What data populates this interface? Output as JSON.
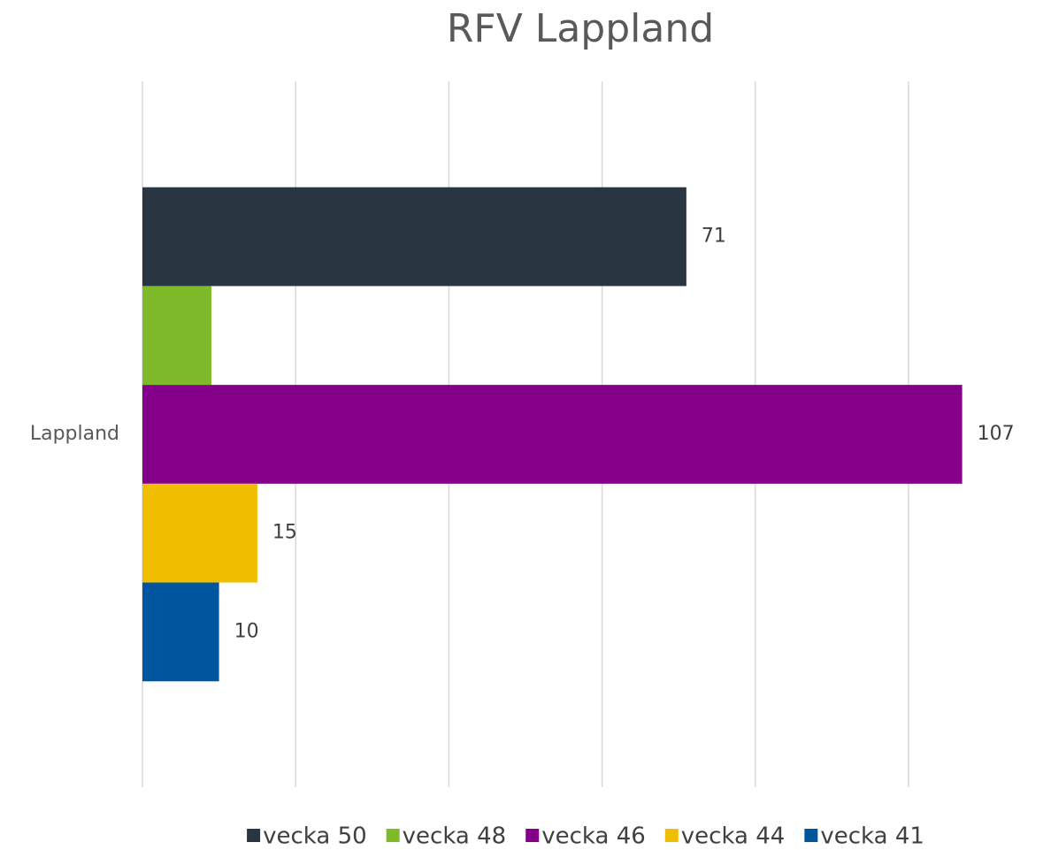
{
  "chart_data": {
    "type": "hbar",
    "title": "RFV Lappland",
    "categories": [
      "Lappland"
    ],
    "series": [
      {
        "name": "vecka 50",
        "color": "#2a3542",
        "values": [
          71
        ]
      },
      {
        "name": "vecka 48",
        "color": "#7fba2a",
        "values": [
          9
        ],
        "data_labels": false
      },
      {
        "name": "vecka 46",
        "color": "#84008a",
        "values": [
          107
        ]
      },
      {
        "name": "vecka 44",
        "color": "#f0bd00",
        "values": [
          15
        ]
      },
      {
        "name": "vecka 41",
        "color": "#00559f",
        "values": [
          10
        ]
      }
    ],
    "xlim": [
      0,
      117
    ],
    "xticks": [
      0,
      20,
      40,
      60,
      80,
      100
    ],
    "grid": true,
    "legend": "bottom"
  }
}
